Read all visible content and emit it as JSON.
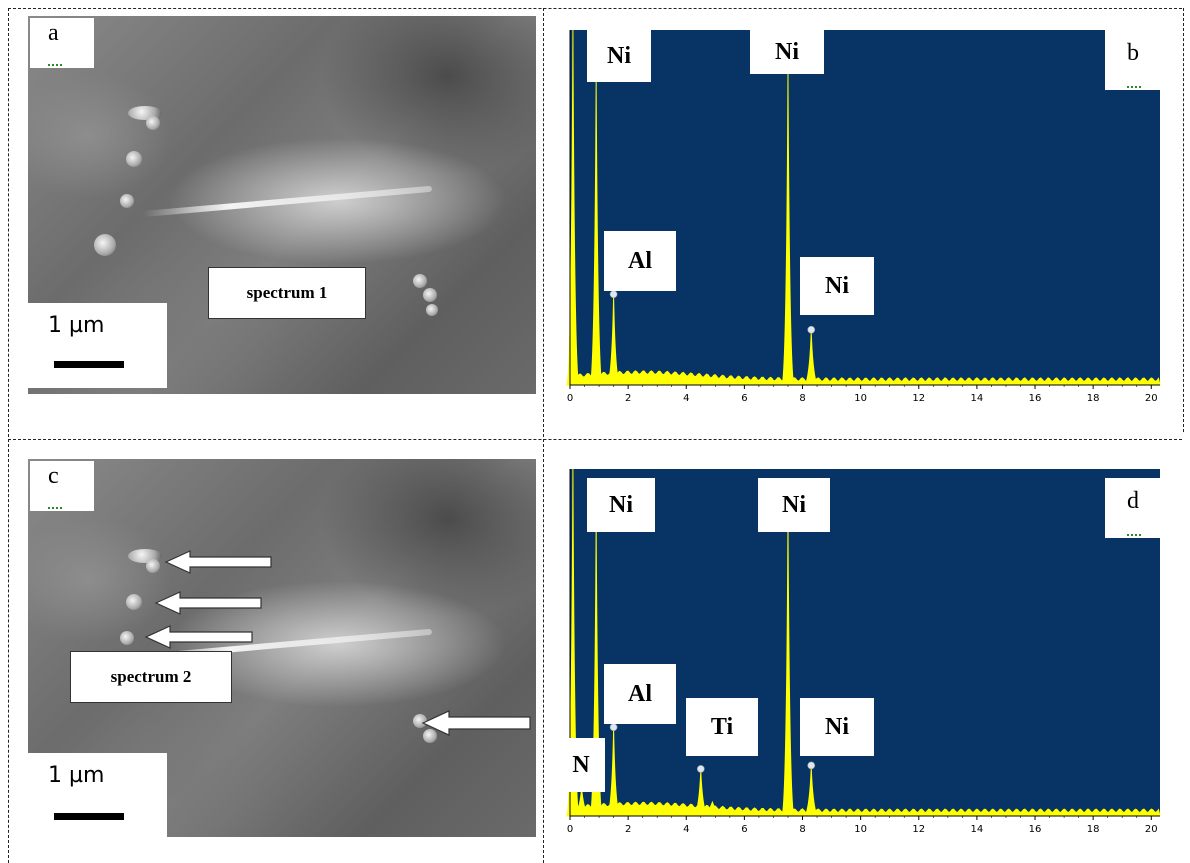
{
  "panels": {
    "a": {
      "letter": "a",
      "spectrum_label": "spectrum 1",
      "scale_label": "1 µm"
    },
    "b": {
      "letter": "b",
      "peak_labels": [
        "Ni",
        "Ni",
        "Al",
        "Ni"
      ]
    },
    "c": {
      "letter": "c",
      "spectrum_label": "spectrum 2",
      "scale_label": "1 µm"
    },
    "d": {
      "letter": "d",
      "peak_labels": [
        "Ni",
        "Ni",
        "Al",
        "Ti",
        "Ni",
        "N"
      ]
    }
  },
  "chart_data": [
    {
      "type": "line",
      "panel": "b",
      "x_ticks": [
        "0",
        "2",
        "4",
        "6",
        "8",
        "10",
        "12",
        "14",
        "16",
        "18",
        "20"
      ],
      "xlim": [
        0,
        20.3
      ],
      "background": "#073465",
      "line_color": "#ffff00",
      "peaks": [
        {
          "x": 0.1,
          "height": 1.0
        },
        {
          "x": 0.9,
          "height": 0.86
        },
        {
          "x": 1.5,
          "height": 0.25
        },
        {
          "x": 7.5,
          "height": 0.88
        },
        {
          "x": 8.3,
          "height": 0.15
        }
      ],
      "peak_annotations": [
        {
          "element": "Ni",
          "x": 0.9
        },
        {
          "element": "Ni",
          "x": 7.5
        },
        {
          "element": "Al",
          "x": 1.5
        },
        {
          "element": "Ni",
          "x": 8.3
        }
      ]
    },
    {
      "type": "line",
      "panel": "d",
      "x_ticks": [
        "0",
        "2",
        "4",
        "6",
        "8",
        "10",
        "12",
        "14",
        "16",
        "18",
        "20"
      ],
      "xlim": [
        0,
        20.3
      ],
      "background": "#073465",
      "line_color": "#ffff00",
      "peaks": [
        {
          "x": 0.1,
          "height": 1.0
        },
        {
          "x": 0.4,
          "height": 0.08
        },
        {
          "x": 0.9,
          "height": 0.85
        },
        {
          "x": 1.5,
          "height": 0.25
        },
        {
          "x": 4.5,
          "height": 0.13
        },
        {
          "x": 4.9,
          "height": 0.04
        },
        {
          "x": 7.5,
          "height": 0.86
        },
        {
          "x": 8.3,
          "height": 0.14
        }
      ],
      "peak_annotations": [
        {
          "element": "Ni",
          "x": 0.9
        },
        {
          "element": "Ni",
          "x": 7.5
        },
        {
          "element": "Al",
          "x": 1.5
        },
        {
          "element": "Ti",
          "x": 4.5
        },
        {
          "element": "Ni",
          "x": 8.3
        },
        {
          "element": "N",
          "x": 0.4
        }
      ]
    }
  ]
}
